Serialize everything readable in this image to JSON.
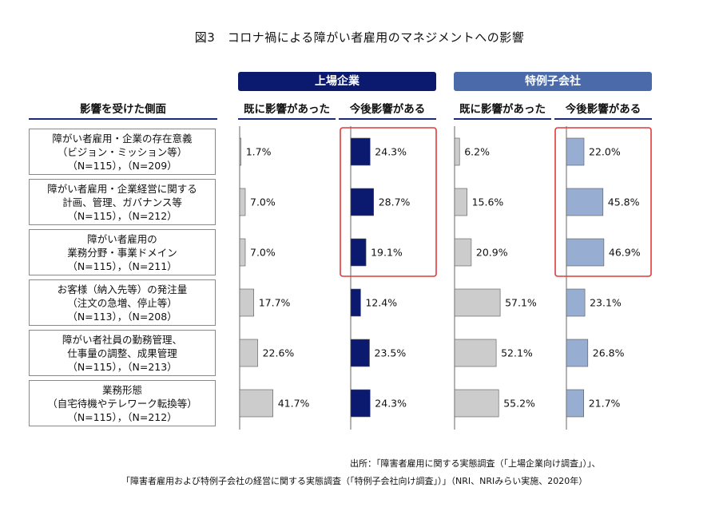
{
  "title": "図3　コロナ禍による障がい者雇用のマネジメントへの影響",
  "groups": {
    "large": "上場企業",
    "subsidiary": "特例子会社"
  },
  "column_headers": {
    "category": "影響を受けた側面",
    "already": "既に影響があった",
    "future": "今後影響がある"
  },
  "categories": [
    {
      "lines": [
        "障がい者雇用・企業の存在意義",
        "（ビジョン・ミッション等）",
        "（N=115），（N=209）"
      ]
    },
    {
      "lines": [
        "障がい者雇用・企業経営に関する",
        "計画、管理、ガバナンス等",
        "（N=115），（N=212）"
      ]
    },
    {
      "lines": [
        "障がい者雇用の",
        "業務分野・事業ドメイン",
        "（N=115），（N=211）"
      ]
    },
    {
      "lines": [
        "お客様（納入先等）の発注量",
        "（注文の急増、停止等）",
        "（N=113），（N=208）"
      ]
    },
    {
      "lines": [
        "障がい者社員の勤務管理、",
        "仕事量の調整、成果管理",
        "（N=115），（N=213）"
      ]
    },
    {
      "lines": [
        "業務形態",
        "（自宅待機やテレワーク転換等）",
        "（N=115），（N=212）"
      ]
    }
  ],
  "chart_data": {
    "type": "bar",
    "orientation": "horizontal",
    "title": "図3　コロナ禍による障がい者雇用のマネジメントへの影響",
    "unit": "%",
    "categories": [
      "障がい者雇用・企業の存在意義（ビジョン・ミッション等）",
      "障がい者雇用・企業経営に関する計画、管理、ガバナンス等",
      "障がい者雇用の業務分野・事業ドメイン",
      "お客様（納入先等）の発注量（注文の急増、停止等）",
      "障がい者社員の勤務管理、仕事量の調整、成果管理",
      "業務形態（自宅待機やテレワーク転換等）"
    ],
    "series": [
      {
        "name": "上場企業 既に影響があった",
        "color": "#cccccc",
        "values": [
          1.7,
          7.0,
          7.0,
          17.7,
          22.6,
          41.7
        ],
        "labels": [
          "1.7%",
          "7.0%",
          "7.0%",
          "17.7%",
          "22.6%",
          "41.7%"
        ]
      },
      {
        "name": "上場企業 今後影響がある",
        "color": "#0b1a6e",
        "values": [
          24.3,
          28.7,
          19.1,
          12.4,
          23.5,
          24.3
        ],
        "labels": [
          "24.3%",
          "28.7%",
          "19.1%",
          "12.4%",
          "23.5%",
          "24.3%"
        ]
      },
      {
        "name": "特例子会社 既に影響があった",
        "color": "#cccccc",
        "values": [
          6.2,
          15.6,
          20.9,
          57.1,
          52.1,
          55.2
        ],
        "labels": [
          "6.2%",
          "15.6%",
          "20.9%",
          "57.1%",
          "52.1%",
          "55.2%"
        ]
      },
      {
        "name": "特例子会社 今後影響がある",
        "color": "#97aed2",
        "values": [
          22.0,
          45.8,
          46.9,
          23.1,
          26.8,
          21.7
        ],
        "labels": [
          "22.0%",
          "45.8%",
          "46.9%",
          "23.1%",
          "26.8%",
          "21.7%"
        ]
      }
    ],
    "highlight": {
      "series": [
        1,
        3
      ],
      "categories": [
        0,
        1,
        2
      ],
      "color": "#e03a3a"
    }
  },
  "source": {
    "line1": "出所：「障害者雇用に関する実態調査（「上場企業向け調査」）」、",
    "line2": "「障害者雇用および特例子会社の経営に関する実態調査（「特例子会社向け調査」）」（NRI、NRIみらい実施、2020年）"
  }
}
